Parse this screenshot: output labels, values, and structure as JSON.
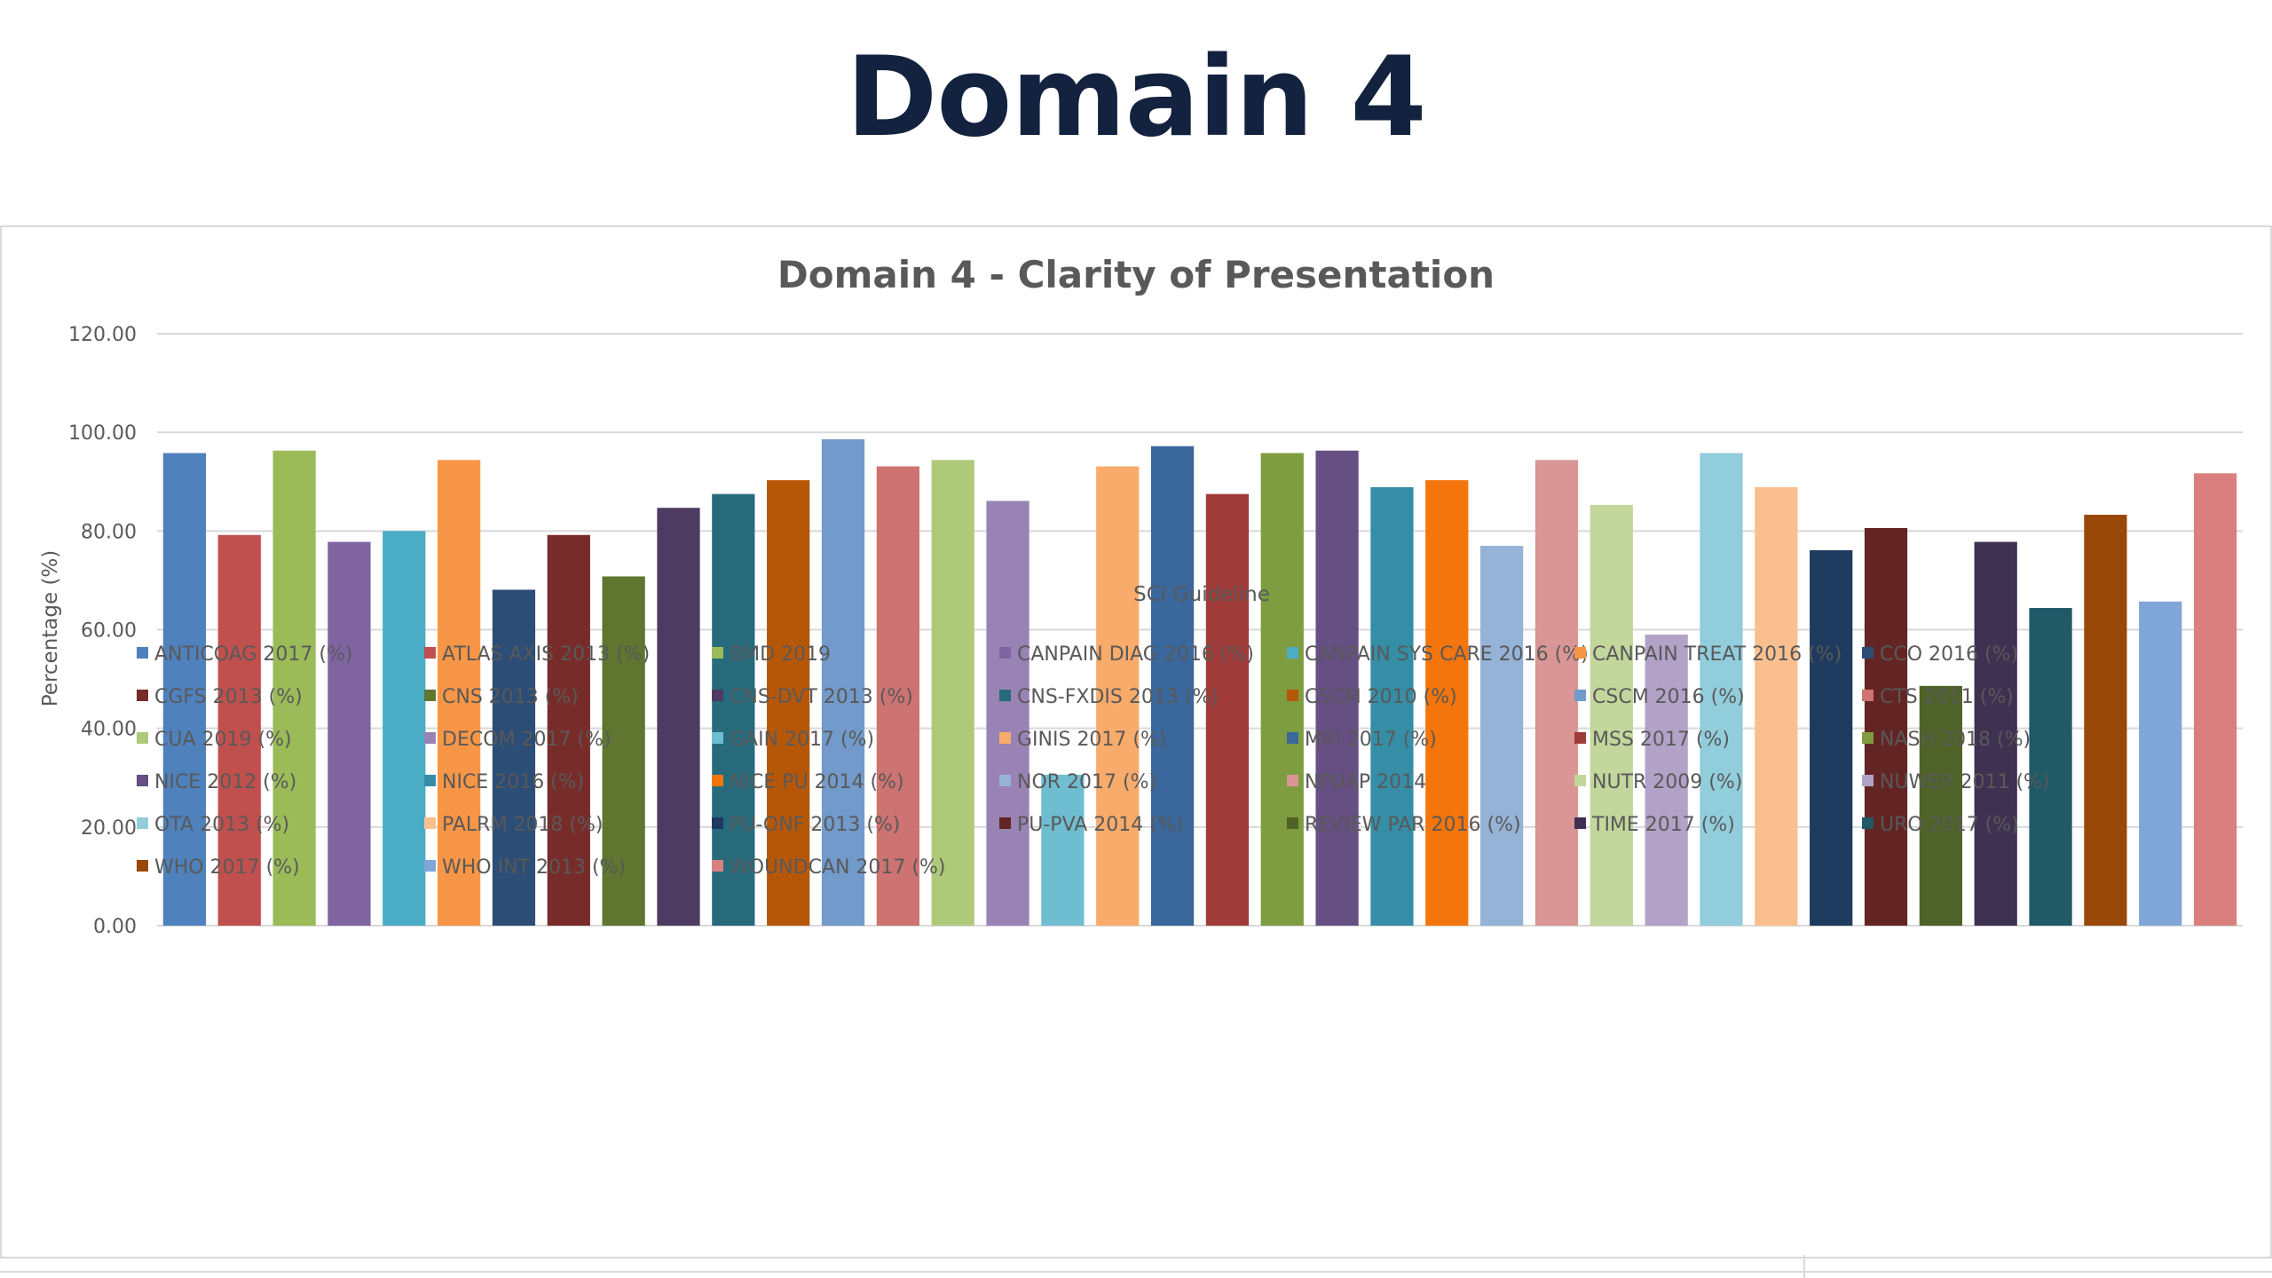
{
  "slide": {
    "title": "Domain 4"
  },
  "chart_data": {
    "type": "bar",
    "title": "Domain 4 - Clarity of Presentation",
    "xlabel": "SCI Guideline",
    "ylabel": "Percentage (%)",
    "ylim": [
      0,
      120
    ],
    "yticks": [
      "0.00",
      "20.00",
      "40.00",
      "60.00",
      "80.00",
      "100.00",
      "120.00"
    ],
    "grid": true,
    "legend_position": "bottom",
    "series": [
      {
        "name": "ANTICOAG 2017 (%)",
        "value": 95.8,
        "color": "#4f81bd"
      },
      {
        "name": "ATLAS AXIS 2013 (%)",
        "value": 79.2,
        "color": "#c0504d"
      },
      {
        "name": "BMD 2019",
        "value": 96.3,
        "color": "#9bbb59"
      },
      {
        "name": "CANPAIN DIAG 2016 (%)",
        "value": 77.8,
        "color": "#8064a2"
      },
      {
        "name": "CANPAIN SYS CARE 2016 (%)",
        "value": 80.0,
        "color": "#4bacc6"
      },
      {
        "name": "CANPAIN TREAT 2016 (%)",
        "value": 94.4,
        "color": "#f79646"
      },
      {
        "name": "CCO 2016 (%)",
        "value": 68.1,
        "color": "#2c4d75"
      },
      {
        "name": "CGFS 2013 (%)",
        "value": 79.2,
        "color": "#772c2a"
      },
      {
        "name": "CNS 2013 (%)",
        "value": 70.8,
        "color": "#5f7530"
      },
      {
        "name": "CNS-DVT 2013 (%)",
        "value": 84.7,
        "color": "#4d3b62"
      },
      {
        "name": "CNS-FXDIS 2013 (%)",
        "value": 87.5,
        "color": "#276a7c"
      },
      {
        "name": "CSCM 2010 (%)",
        "value": 90.3,
        "color": "#b65708"
      },
      {
        "name": "CSCM 2016 (%)",
        "value": 98.6,
        "color": "#729aca"
      },
      {
        "name": "CTS 2011 (%)",
        "value": 93.1,
        "color": "#cd7371"
      },
      {
        "name": "CUA 2019 (%)",
        "value": 94.4,
        "color": "#afc97a"
      },
      {
        "name": "DECOM 2017 (%)",
        "value": 86.1,
        "color": "#9983b5"
      },
      {
        "name": "GAIN 2017 (%)",
        "value": 30.6,
        "color": "#6fbdd1"
      },
      {
        "name": "GINIS 2017 (%)",
        "value": 93.1,
        "color": "#f9ab6b"
      },
      {
        "name": "MRI 2017 (%)",
        "value": 97.2,
        "color": "#3a679c"
      },
      {
        "name": "MSS 2017 (%)",
        "value": 87.5,
        "color": "#9f3b38"
      },
      {
        "name": "NASH 2018  (%)",
        "value": 95.8,
        "color": "#7e9c40"
      },
      {
        "name": "NICE 2012  (%)",
        "value": 96.3,
        "color": "#664f83"
      },
      {
        "name": "NICE 2016  (%)",
        "value": 88.9,
        "color": "#358ea6"
      },
      {
        "name": "NICE PU 2014  (%)",
        "value": 90.3,
        "color": "#f3750b"
      },
      {
        "name": "NOR 2017  (%)",
        "value": 77.0,
        "color": "#95b3d7"
      },
      {
        "name": "NPUAP 2014",
        "value": 94.4,
        "color": "#d99694"
      },
      {
        "name": "NUTR 2009  (%)",
        "value": 85.3,
        "color": "#c3d69b"
      },
      {
        "name": "NUWER 2011 (%)",
        "value": 59.0,
        "color": "#b2a2c7"
      },
      {
        "name": "OTA 2013 (%)",
        "value": 95.8,
        "color": "#92cddc"
      },
      {
        "name": "PALRM 2018 (%)",
        "value": 88.9,
        "color": "#fabf8f"
      },
      {
        "name": "PU-ONF 2013 (%)",
        "value": 76.1,
        "color": "#1f3a5f"
      },
      {
        "name": "PU-PVA 2014 (%)",
        "value": 80.6,
        "color": "#632523"
      },
      {
        "name": "REVIEW PAR 2016 (%)",
        "value": 48.6,
        "color": "#4f6228"
      },
      {
        "name": "TIME 2017 (%)",
        "value": 77.8,
        "color": "#3f3151"
      },
      {
        "name": "URO 2017 (%)",
        "value": 64.4,
        "color": "#215967"
      },
      {
        "name": "WHO 2017 (%)",
        "value": 83.3,
        "color": "#984807"
      },
      {
        "name": "WHO INT 2013 (%)",
        "value": 65.7,
        "color": "#7fa6d6"
      },
      {
        "name": "WOUNDCAN 2017 (%)",
        "value": 91.7,
        "color": "#d9807e"
      }
    ]
  }
}
